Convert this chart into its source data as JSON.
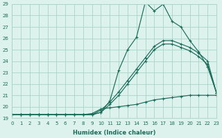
{
  "xlabel": "Humidex (Indice chaleur)",
  "bg_color": "#ddf2ec",
  "grid_color": "#a8d5c8",
  "line_color": "#1a6b5a",
  "xlim": [
    0,
    23
  ],
  "ylim": [
    19,
    29
  ],
  "xticks": [
    0,
    1,
    2,
    3,
    4,
    5,
    6,
    7,
    8,
    9,
    10,
    11,
    12,
    13,
    14,
    15,
    16,
    17,
    18,
    19,
    20,
    21,
    22,
    23
  ],
  "yticks": [
    19,
    20,
    21,
    22,
    23,
    24,
    25,
    26,
    27,
    28,
    29
  ],
  "curve_main_x": [
    0,
    1,
    2,
    3,
    4,
    5,
    6,
    7,
    8,
    9,
    10,
    11,
    12,
    13,
    14,
    15,
    16,
    17,
    18,
    19,
    20,
    21,
    22,
    23
  ],
  "curve_main_y": [
    19.3,
    19.3,
    19.3,
    19.3,
    19.3,
    19.3,
    19.3,
    19.3,
    19.3,
    19.3,
    19.5,
    20.5,
    23.2,
    25.0,
    26.1,
    29.2,
    28.4,
    29.0,
    27.5,
    27.0,
    25.8,
    24.8,
    23.5,
    21.2
  ],
  "curve_diag1_x": [
    0,
    1,
    2,
    3,
    4,
    5,
    6,
    7,
    8,
    9,
    10,
    11,
    12,
    13,
    14,
    15,
    16,
    17,
    18,
    19,
    20,
    21,
    22,
    23
  ],
  "curve_diag1_y": [
    19.3,
    19.3,
    19.3,
    19.3,
    19.3,
    19.3,
    19.3,
    19.3,
    19.3,
    19.3,
    19.7,
    20.4,
    21.3,
    22.3,
    23.3,
    24.3,
    25.3,
    25.8,
    25.8,
    25.5,
    25.2,
    24.7,
    24.0,
    21.2
  ],
  "curve_diag2_x": [
    0,
    1,
    2,
    3,
    4,
    5,
    6,
    7,
    8,
    9,
    10,
    11,
    12,
    13,
    14,
    15,
    16,
    17,
    18,
    19,
    20,
    21,
    22,
    23
  ],
  "curve_diag2_y": [
    19.3,
    19.3,
    19.3,
    19.3,
    19.3,
    19.3,
    19.3,
    19.3,
    19.3,
    19.3,
    19.5,
    20.2,
    21.0,
    22.0,
    23.0,
    24.0,
    25.0,
    25.5,
    25.5,
    25.2,
    24.9,
    24.4,
    23.7,
    21.2
  ],
  "curve_flat_x": [
    0,
    1,
    2,
    3,
    4,
    5,
    6,
    7,
    8,
    9,
    10,
    11,
    12,
    13,
    14,
    15,
    16,
    17,
    18,
    19,
    20,
    21,
    22,
    23
  ],
  "curve_flat_y": [
    19.3,
    19.3,
    19.3,
    19.3,
    19.3,
    19.3,
    19.3,
    19.3,
    19.3,
    19.4,
    19.8,
    19.9,
    20.0,
    20.1,
    20.2,
    20.4,
    20.6,
    20.7,
    20.8,
    20.9,
    21.0,
    21.0,
    21.0,
    21.0
  ]
}
